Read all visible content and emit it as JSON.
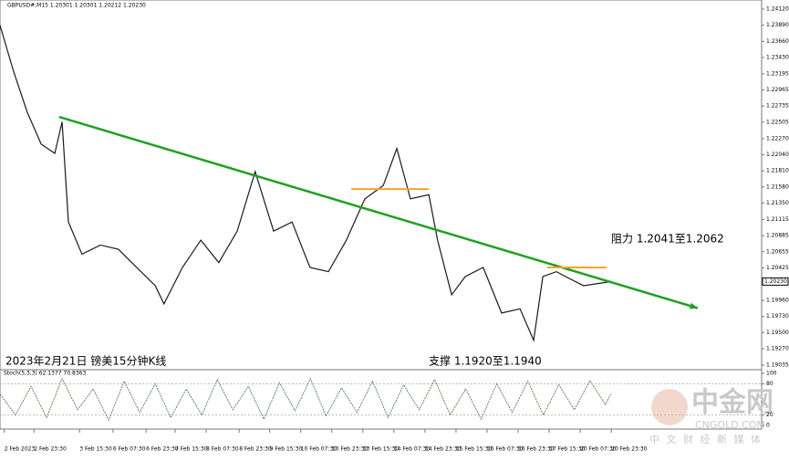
{
  "header": "GBPUSD#,M15 1.20301 1.20301 1.20212 1.20230",
  "watermark": {
    "name": "中金网",
    "site": "CNGOLD.COM",
    "slogan": "中 文 财 经 新 媒 体"
  },
  "chart_data": [
    {
      "type": "line",
      "title": "2023年2月21日 镑美15分钟K线",
      "annotations": {
        "resistance": "阻力 1.2041至1.2062",
        "support": "支撑 1.1920至1.1940"
      },
      "x": [
        0,
        28,
        56,
        85,
        113,
        128,
        141,
        169,
        207,
        244,
        282,
        320,
        338,
        376,
        414,
        451,
        489,
        526,
        564,
        602,
        639,
        677,
        714,
        752,
        790,
        818,
        846,
        884,
        902,
        931,
        959,
        996,
        1034,
        1072,
        1100,
        1119,
        1147,
        1166,
        1203,
        1260
      ],
      "series": [
        {
          "name": "GBPUSD",
          "color": "#1a1a1a",
          "values": [
            1.2389,
            1.2323,
            1.2265,
            1.2219,
            1.2206,
            1.2251,
            1.2108,
            1.2062,
            1.2075,
            1.2069,
            1.2043,
            1.2017,
            1.1991,
            1.2043,
            1.2082,
            1.205,
            1.2095,
            1.218,
            1.2095,
            1.2108,
            1.2043,
            1.2037,
            1.2082,
            1.2141,
            1.216,
            1.2213,
            1.2141,
            1.2147,
            1.2082,
            1.2004,
            1.203,
            1.2043,
            1.1978,
            1.1984,
            1.1939,
            1.203,
            1.2037,
            1.203,
            1.2017,
            1.2023
          ]
        }
      ],
      "trendline": {
        "color": "#1fa11f",
        "x": [
          122,
          1438
        ],
        "values": [
          1.2258,
          1.1985
        ]
      },
      "levels": [
        {
          "color": "#f5a623",
          "x": [
            724,
            884
          ],
          "value": 1.2155
        },
        {
          "color": "#f5a623",
          "x": [
            1128,
            1250
          ],
          "value": 1.2043
        }
      ],
      "last_price": {
        "value": 1.2023,
        "label": "1.20230"
      },
      "xlim": [
        0,
        1570
      ],
      "ylim": [
        1.1897,
        1.24211
      ],
      "yticks": [
        {
          "value": 1.2412,
          "label": "1.24120"
        },
        {
          "value": 1.2389,
          "label": "1.23890"
        },
        {
          "value": 1.2366,
          "label": "1.23660"
        },
        {
          "value": 1.2343,
          "label": "1.23430"
        },
        1.23195,
        1.22965,
        1.22735,
        1.22505,
        {
          "value": 1.2227,
          "label": "1.22270"
        },
        {
          "value": 1.2204,
          "label": "1.22040"
        },
        {
          "value": 1.2181,
          "label": "1.21810"
        },
        {
          "value": 1.2158,
          "label": "1.21580"
        },
        {
          "value": 1.2135,
          "label": "1.21350"
        },
        1.21115,
        1.20885,
        1.20655,
        1.20425,
        {
          "value": 1.1996,
          "label": "1.19960"
        },
        {
          "value": 1.1973,
          "label": "1.19730"
        },
        {
          "value": 1.195,
          "label": "1.19500"
        },
        {
          "value": 1.1927,
          "label": "1.19270"
        },
        1.19035
      ],
      "xticks": [
        {
          "value": 9,
          "label": "2 Feb 2023"
        },
        {
          "value": 70,
          "label": "2 Feb 23:30"
        },
        {
          "value": 164,
          "label": "3 Feb 15:30"
        },
        {
          "value": 233,
          "label": "6 Feb 07:30"
        },
        {
          "value": 301,
          "label": "6 Feb 23:30"
        },
        {
          "value": 361,
          "label": "7 Feb 15:30"
        },
        {
          "value": 425,
          "label": "8 Feb 07:30"
        },
        {
          "value": 493,
          "label": "8 Feb 23:30"
        },
        {
          "value": 556,
          "label": "9 Feb 15:30"
        },
        {
          "value": 620,
          "label": "10 Feb 07:30"
        },
        {
          "value": 684,
          "label": "10 Feb 23:30"
        },
        {
          "value": 748,
          "label": "13 Feb 15:30"
        },
        {
          "value": 812,
          "label": "14 Feb 07:30"
        },
        {
          "value": 876,
          "label": "14 Feb 23:30"
        },
        {
          "value": 940,
          "label": "15 Feb 15:30"
        },
        {
          "value": 1004,
          "label": "16 Feb 07:30"
        },
        {
          "value": 1068,
          "label": "16 Feb 23:30"
        },
        {
          "value": 1132,
          "label": "17 Feb 15:30"
        },
        {
          "value": 1196,
          "label": "20 Feb 07:30"
        },
        {
          "value": 1260,
          "label": "20 Feb 23:30"
        }
      ]
    },
    {
      "type": "line",
      "title": "Stoch(5,3,3) 62.1377 70.8363",
      "x": [
        0,
        32,
        64,
        96,
        128,
        160,
        192,
        224,
        256,
        288,
        320,
        352,
        384,
        416,
        448,
        480,
        512,
        544,
        576,
        608,
        640,
        672,
        704,
        736,
        768,
        800,
        832,
        864,
        896,
        928,
        960,
        992,
        1024,
        1056,
        1088,
        1120,
        1152,
        1184,
        1216,
        1248,
        1260
      ],
      "series": [
        {
          "name": "Stoch",
          "color": "#3a6e3a",
          "values": [
            60,
            20,
            75,
            15,
            90,
            30,
            70,
            10,
            85,
            25,
            80,
            15,
            70,
            20,
            88,
            30,
            75,
            12,
            82,
            28,
            90,
            18,
            72,
            25,
            85,
            15,
            78,
            30,
            88,
            20,
            70,
            12,
            80,
            25,
            85,
            20,
            78,
            30,
            86,
            40,
            62.1377
          ]
        }
      ],
      "xlim": [
        0,
        1570
      ],
      "ylim": [
        0,
        100
      ],
      "yticks": [
        100,
        80,
        20,
        0
      ]
    }
  ]
}
